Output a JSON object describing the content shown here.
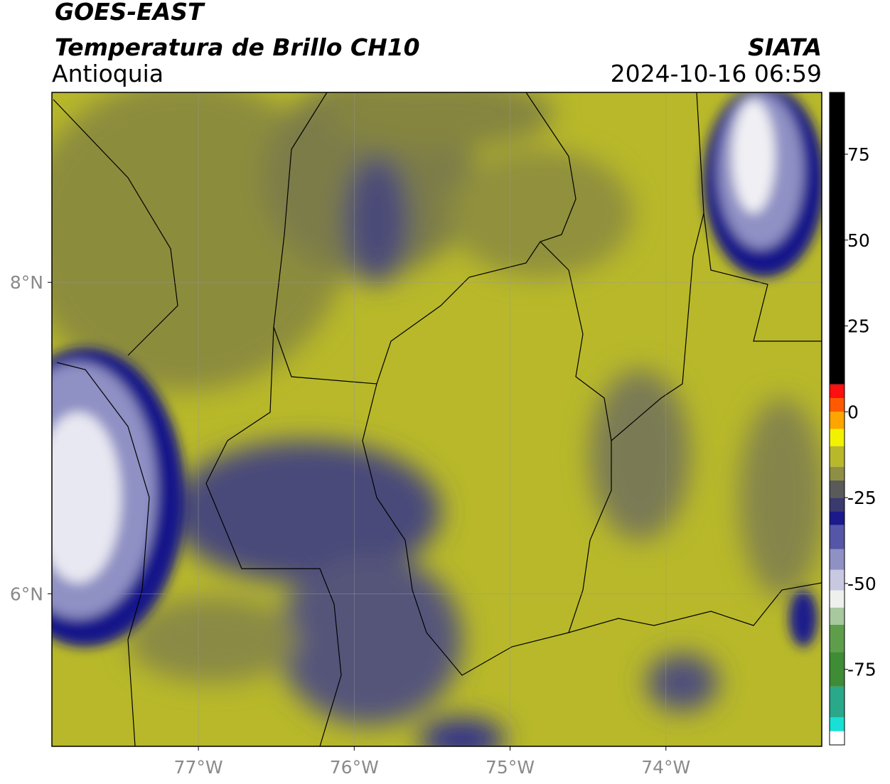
{
  "header": {
    "title": "GOES-EAST",
    "subtitle": "Temperatura de Brillo CH10",
    "region": "Antioquia",
    "source": "SIATA",
    "datetime": "2024-10-16 06:59"
  },
  "map": {
    "lonlim": [
      -77.94,
      -73.0
    ],
    "latlim": [
      5.02,
      9.22
    ],
    "lonticks": [
      {
        "value": -77,
        "label": "77°W"
      },
      {
        "value": -76,
        "label": "76°W"
      },
      {
        "value": -75,
        "label": "75°W"
      },
      {
        "value": -74,
        "label": "74°W"
      }
    ],
    "latticks": [
      {
        "value": 8,
        "label": "8°N"
      },
      {
        "value": 6,
        "label": "6°N"
      }
    ],
    "grid": true,
    "colorbar": {
      "lim": [
        -97,
        93
      ],
      "ticks": [
        75,
        50,
        25,
        0,
        -25,
        -50,
        -75
      ],
      "colormap": [
        {
          "value": -97,
          "color": "#ffffff"
        },
        {
          "value": -93,
          "color": "#19e0d5"
        },
        {
          "value": -89,
          "color": "#2aa88a"
        },
        {
          "value": -80,
          "color": "#3e8c35"
        },
        {
          "value": -70,
          "color": "#5e9e4a"
        },
        {
          "value": -62,
          "color": "#a8c8a0"
        },
        {
          "value": -57,
          "color": "#eef0ee"
        },
        {
          "value": -52,
          "color": "#c8c8e0"
        },
        {
          "value": -46,
          "color": "#8f90c4"
        },
        {
          "value": -40,
          "color": "#5556a8"
        },
        {
          "value": -33,
          "color": "#1a1a8c"
        },
        {
          "value": -29,
          "color": "#3a3a6e"
        },
        {
          "value": -25,
          "color": "#5a5a5a"
        },
        {
          "value": -20,
          "color": "#8e8e45"
        },
        {
          "value": -16,
          "color": "#b8b82a"
        },
        {
          "value": -10,
          "color": "#f2f200"
        },
        {
          "value": -5,
          "color": "#ffa500"
        },
        {
          "value": 0,
          "color": "#ff5a00"
        },
        {
          "value": 4,
          "color": "#ff1010"
        },
        {
          "value": 8,
          "color": "#000000"
        }
      ]
    }
  }
}
